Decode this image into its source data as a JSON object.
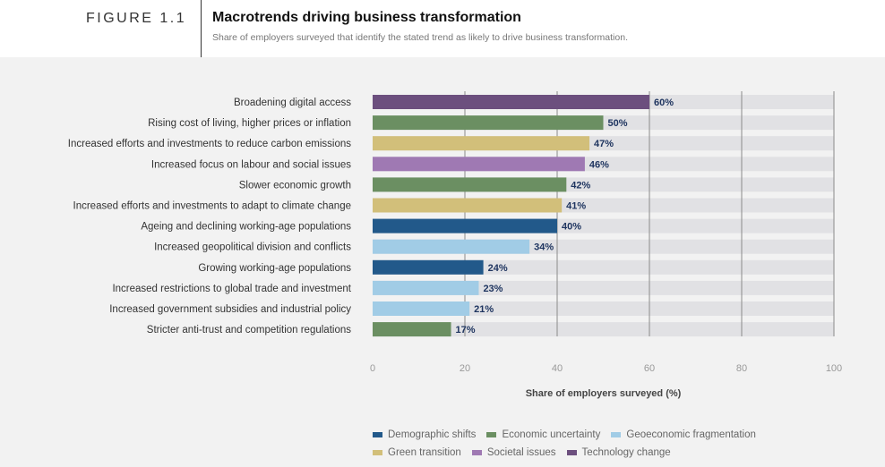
{
  "header": {
    "figure_label": "FIGURE 1.1",
    "title": "Macrotrends driving business transformation",
    "subtitle": "Share of employers surveyed that identify the stated trend as likely to drive business transformation."
  },
  "colors": {
    "Demographic shifts": "#22598a",
    "Economic uncertainty": "#6b8f62",
    "Geoeconomic fragmentation": "#a1cce6",
    "Green transition": "#d2bf7a",
    "Societal issues": "#9f79b3",
    "Technology change": "#6c4f7e",
    "track": "#e1e1e4",
    "gridline": "#8a8a8a"
  },
  "chart_data": {
    "type": "bar",
    "orientation": "horizontal",
    "categories": [
      "Broadening digital access",
      "Rising cost of living, higher prices or inflation",
      "Increased efforts and investments to reduce carbon emissions",
      "Increased focus on labour and social issues",
      "Slower economic growth",
      "Increased efforts and investments to adapt to climate change",
      "Ageing and declining working-age populations",
      "Increased geopolitical division and conflicts",
      "Growing working-age populations",
      "Increased restrictions to global trade and investment",
      "Increased government subsidies and industrial policy",
      "Stricter anti-trust and competition regulations"
    ],
    "values": [
      60,
      50,
      47,
      46,
      42,
      41,
      40,
      34,
      24,
      23,
      21,
      17
    ],
    "value_labels": [
      "60%",
      "50%",
      "47%",
      "46%",
      "42%",
      "41%",
      "40%",
      "34%",
      "24%",
      "23%",
      "21%",
      "17%"
    ],
    "groups": [
      "Technology change",
      "Economic uncertainty",
      "Green transition",
      "Societal issues",
      "Economic uncertainty",
      "Green transition",
      "Demographic shifts",
      "Geoeconomic fragmentation",
      "Demographic shifts",
      "Geoeconomic fragmentation",
      "Geoeconomic fragmentation",
      "Economic uncertainty"
    ],
    "xlabel": "Share of employers surveyed (%)",
    "xlim": [
      0,
      100
    ],
    "xticks": [
      0,
      20,
      40,
      60,
      80,
      100
    ],
    "grid": true,
    "legend": {
      "placement": "bottom",
      "rows": [
        [
          "Demographic shifts",
          "Economic uncertainty",
          "Geoeconomic fragmentation"
        ],
        [
          "Green transition",
          "Societal issues",
          "Technology change"
        ]
      ]
    }
  }
}
